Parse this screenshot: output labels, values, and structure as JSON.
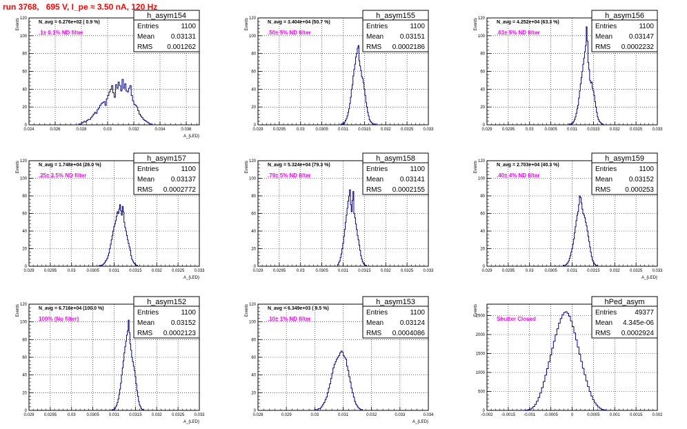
{
  "header": {
    "run_title": "run 3768,   695 V, I_pe ≈ 3.50 nA, 120 Hz"
  },
  "colors": {
    "title": "#ff0000",
    "histogram": "#000080",
    "annotation": "#ff00ff",
    "grid": "#000000"
  },
  "chart_data": [
    {
      "type": "histogram",
      "stats_title": "h_asym154",
      "stats": [
        [
          "Entries",
          "1100"
        ],
        [
          "Mean",
          "0.03131"
        ],
        [
          "RMS",
          "0.001262"
        ]
      ],
      "navg": "N_avg = 6.276e+02 ( 0.9 %)",
      "filter": ".1± 0.1% ND filter",
      "ylabel": "Events",
      "xlabel": "A_{LED}",
      "xlim": [
        0.024,
        0.037
      ],
      "ylim": [
        0,
        120
      ],
      "xticks": [
        0.024,
        0.026,
        0.028,
        0.03,
        0.032,
        0.034,
        0.036
      ],
      "xticklabels": [
        "0.024",
        "0.026",
        "0.028",
        "0.03",
        "0.032",
        "0.034",
        "0.036"
      ],
      "yticks": [
        0,
        20,
        40,
        60,
        80,
        100,
        120
      ],
      "yticklabels": [
        "0",
        "20",
        "40",
        "60",
        "80",
        "100",
        "120"
      ],
      "bins": {
        "start": 0.0278,
        "width": 0.0001,
        "counts": [
          1,
          1,
          2,
          3,
          4,
          3,
          5,
          6,
          6,
          8,
          10,
          12,
          14,
          13,
          17,
          19,
          22,
          24,
          25,
          26,
          22,
          29,
          33,
          37,
          40,
          44,
          36,
          31,
          45,
          41,
          48,
          44,
          38,
          51,
          41,
          46,
          38,
          37,
          41,
          44,
          33,
          27,
          23,
          22,
          20,
          16,
          12,
          10,
          8,
          6,
          5,
          4,
          3,
          2,
          1,
          1
        ]
      }
    },
    {
      "type": "histogram",
      "stats_title": "h_asym155",
      "stats": [
        [
          "Entries",
          "1100"
        ],
        [
          "Mean",
          "0.03151"
        ],
        [
          "RMS",
          "0.0002186"
        ]
      ],
      "navg": "N_avg = 3.404e+04 (50.7 %)",
      "filter": ".50± 5% ND filter",
      "ylabel": "Events",
      "xlabel": "",
      "xlim": [
        0.029,
        0.033
      ],
      "ylim": [
        0,
        120
      ],
      "xticks": [
        0.029,
        0.0295,
        0.03,
        0.0305,
        0.031,
        0.0315,
        0.032,
        0.0325,
        0.033
      ],
      "xticklabels": [
        "0.029",
        "0.0295",
        "0.03",
        "0.0305",
        "0.031",
        "0.0315",
        "0.032",
        "0.0325",
        "0.033"
      ],
      "yticks": [
        0,
        20,
        40,
        60,
        80,
        100,
        120
      ],
      "yticklabels": [
        "0",
        "20",
        "40",
        "60",
        "80",
        "100",
        "120"
      ],
      "bins": {
        "start": 0.03095,
        "width": 2e-05,
        "counts": [
          1,
          0,
          2,
          1,
          3,
          5,
          7,
          10,
          14,
          18,
          24,
          31,
          40,
          45,
          55,
          62,
          68,
          76,
          80,
          86,
          89,
          72,
          66,
          61,
          54,
          52,
          47,
          40,
          33,
          25,
          20,
          14,
          10,
          6,
          4,
          3,
          2,
          1,
          1,
          0,
          1
        ]
      }
    },
    {
      "type": "histogram",
      "stats_title": "h_asym156",
      "stats": [
        [
          "Entries",
          "1100"
        ],
        [
          "Mean",
          "0.03147"
        ],
        [
          "RMS",
          "0.0002232"
        ]
      ],
      "navg": "N_avg = 4.252e+04 (63.3 %)",
      "filter": ".63± 5% ND filter",
      "ylabel": "Events",
      "xlabel": "",
      "xlim": [
        0.029,
        0.033
      ],
      "ylim": [
        0,
        120
      ],
      "xticks": [
        0.029,
        0.0295,
        0.03,
        0.0305,
        0.031,
        0.0315,
        0.032,
        0.0325,
        0.033
      ],
      "xticklabels": [
        "0.029",
        "0.0295",
        "0.03",
        "0.0305",
        "0.031",
        "0.0315",
        "0.032",
        "0.0325",
        "0.033"
      ],
      "yticks": [
        0,
        20,
        40,
        60,
        80,
        100,
        120
      ],
      "yticklabels": [
        "0",
        "20",
        "40",
        "60",
        "80",
        "100",
        "120"
      ],
      "bins": {
        "start": 0.03093,
        "width": 2e-05,
        "counts": [
          1,
          0,
          1,
          2,
          2,
          4,
          6,
          9,
          13,
          18,
          22,
          30,
          38,
          46,
          53,
          60,
          68,
          75,
          82,
          89,
          110,
          94,
          70,
          62,
          50,
          47,
          48,
          41,
          38,
          33,
          26,
          20,
          14,
          9,
          6,
          4,
          3,
          2,
          1,
          1
        ]
      }
    },
    {
      "type": "histogram",
      "stats_title": "h_asym157",
      "stats": [
        [
          "Entries",
          "1100"
        ],
        [
          "Mean",
          "0.03137"
        ],
        [
          "RMS",
          "0.0002772"
        ]
      ],
      "navg": "N_avg = 1.748e+04 (26.0 %)",
      "filter": ".25± 2.5% ND filter",
      "ylabel": "Events",
      "xlabel": "A_{LED}",
      "xlim": [
        0.029,
        0.033
      ],
      "ylim": [
        0,
        120
      ],
      "xticks": [
        0.029,
        0.0295,
        0.03,
        0.0305,
        0.031,
        0.0315,
        0.032,
        0.0325,
        0.033
      ],
      "xticklabels": [
        "0.029",
        "0.0295",
        "0.03",
        "0.0305",
        "0.031",
        "0.0315",
        "0.032",
        "0.0325",
        "0.033"
      ],
      "yticks": [
        0,
        20,
        40,
        60,
        80,
        100,
        120
      ],
      "yticklabels": [
        "0",
        "20",
        "40",
        "60",
        "80",
        "100",
        "120"
      ],
      "bins": {
        "start": 0.03065,
        "width": 2e-05,
        "counts": [
          1,
          0,
          1,
          1,
          2,
          3,
          4,
          6,
          7,
          9,
          12,
          15,
          20,
          25,
          30,
          35,
          40,
          45,
          48,
          52,
          57,
          62,
          60,
          65,
          70,
          63,
          58,
          68,
          62,
          50,
          44,
          40,
          35,
          30,
          26,
          22,
          18,
          12,
          8,
          6,
          4,
          3,
          2,
          1,
          1
        ]
      }
    },
    {
      "type": "histogram",
      "stats_title": "h_asym158",
      "stats": [
        [
          "Entries",
          "1100"
        ],
        [
          "Mean",
          "0.03141"
        ],
        [
          "RMS",
          "0.0002155"
        ]
      ],
      "navg": "N_avg = 5.324e+04 (79.3 %)",
      "filter": ".79± 5% ND filter",
      "ylabel": "Events",
      "xlabel": "",
      "xlim": [
        0.029,
        0.033
      ],
      "ylim": [
        0,
        120
      ],
      "xticks": [
        0.029,
        0.0295,
        0.03,
        0.0305,
        0.031,
        0.0315,
        0.032,
        0.0325,
        0.033
      ],
      "xticklabels": [
        "0.029",
        "0.0295",
        "0.03",
        "0.0305",
        "0.031",
        "0.0315",
        "0.032",
        "0.0325",
        "0.033"
      ],
      "yticks": [
        0,
        20,
        40,
        60,
        80,
        100,
        120
      ],
      "yticklabels": [
        "0",
        "20",
        "40",
        "60",
        "80",
        "100",
        "120"
      ],
      "bins": {
        "start": 0.03087,
        "width": 2e-05,
        "counts": [
          2,
          4,
          6,
          10,
          14,
          20,
          26,
          34,
          42,
          50,
          58,
          66,
          74,
          80,
          87,
          70,
          62,
          75,
          85,
          60,
          55,
          48,
          42,
          35,
          30,
          24,
          18,
          12,
          8,
          5,
          3,
          2,
          1,
          1
        ]
      }
    },
    {
      "type": "histogram",
      "stats_title": "h_asym159",
      "stats": [
        [
          "Entries",
          "1100"
        ],
        [
          "Mean",
          "0.03152"
        ],
        [
          "RMS",
          "0.000253"
        ]
      ],
      "navg": "N_avg = 2.703e+04 (40.3 %)",
      "filter": ".40± 4% ND filter",
      "ylabel": "Events",
      "xlabel": "A_{LED}",
      "xlim": [
        0.029,
        0.033
      ],
      "ylim": [
        0,
        120
      ],
      "xticks": [
        0.029,
        0.0295,
        0.03,
        0.0305,
        0.031,
        0.0315,
        0.032,
        0.0325,
        0.033
      ],
      "xticklabels": [
        "0.029",
        "0.0295",
        "0.03",
        "0.0305",
        "0.031",
        "0.0315",
        "0.032",
        "0.0325",
        "0.033"
      ],
      "yticks": [
        0,
        20,
        40,
        60,
        80,
        100,
        120
      ],
      "yticklabels": [
        "0",
        "20",
        "40",
        "60",
        "80",
        "100",
        "120"
      ],
      "bins": {
        "start": 0.03079,
        "width": 2e-05,
        "counts": [
          1,
          0,
          1,
          2,
          3,
          4,
          6,
          9,
          12,
          16,
          20,
          25,
          31,
          38,
          45,
          52,
          58,
          62,
          70,
          80,
          78,
          72,
          65,
          60,
          58,
          55,
          50,
          46,
          40,
          34,
          28,
          22,
          16,
          11,
          7,
          5,
          3,
          2,
          1,
          1
        ]
      }
    },
    {
      "type": "histogram",
      "stats_title": "h_asym152",
      "stats": [
        [
          "Entries",
          "1100"
        ],
        [
          "Mean",
          "0.03152"
        ],
        [
          "RMS",
          "0.0002123"
        ]
      ],
      "navg": "N_avg = 6.716e+04 (100.0 %)",
      "filter": "100% (No filter)",
      "ylabel": "Events",
      "xlabel": "A_{LED}",
      "xlim": [
        0.029,
        0.033
      ],
      "ylim": [
        0,
        120
      ],
      "xticks": [
        0.029,
        0.0295,
        0.03,
        0.0305,
        0.031,
        0.0315,
        0.032,
        0.0325,
        0.033
      ],
      "xticklabels": [
        "0.029",
        "0.0295",
        "0.03",
        "0.0305",
        "0.031",
        "0.0315",
        "0.032",
        "0.0325",
        "0.033"
      ],
      "yticks": [
        0,
        20,
        40,
        60,
        80,
        100,
        120
      ],
      "yticklabels": [
        "0",
        "20",
        "40",
        "60",
        "80",
        "100",
        "120"
      ],
      "bins": {
        "start": 0.03095,
        "width": 2e-05,
        "counts": [
          1,
          0,
          1,
          2,
          4,
          6,
          9,
          13,
          18,
          24,
          31,
          40,
          48,
          56,
          65,
          72,
          78,
          85,
          90,
          102,
          88,
          75,
          68,
          60,
          55,
          50,
          45,
          38,
          30,
          22,
          16,
          10,
          6,
          4,
          2,
          1,
          1
        ]
      }
    },
    {
      "type": "histogram",
      "stats_title": "h_asym153",
      "stats": [
        [
          "Entries",
          "1100"
        ],
        [
          "Mean",
          "0.03124"
        ],
        [
          "RMS",
          "0.0004086"
        ]
      ],
      "navg": "N_avg = 6.349e+03 ( 9.5 %)",
      "filter": ".10± 1% ND filter",
      "ylabel": "Events",
      "xlabel": "A_{LED}",
      "xlim": [
        0.028,
        0.034
      ],
      "ylim": [
        0,
        120
      ],
      "xticks": [
        0.028,
        0.029,
        0.03,
        0.031,
        0.032,
        0.033,
        0.034
      ],
      "xticklabels": [
        "0.028",
        "0.029",
        "0.03",
        "0.031",
        "0.032",
        "0.033",
        "0.034"
      ],
      "yticks": [
        0,
        20,
        40,
        60,
        80,
        100,
        120
      ],
      "yticklabels": [
        "0",
        "20",
        "40",
        "60",
        "80",
        "100",
        "120"
      ],
      "bins": {
        "start": 0.03,
        "width": 4e-05,
        "counts": [
          1,
          0,
          1,
          2,
          2,
          3,
          5,
          7,
          9,
          12,
          15,
          20,
          25,
          30,
          36,
          42,
          48,
          52,
          55,
          58,
          60,
          62,
          65,
          67,
          66,
          62,
          60,
          58,
          50,
          45,
          38,
          32,
          25,
          20,
          15,
          10,
          7,
          5,
          3,
          2,
          1,
          1
        ]
      }
    },
    {
      "type": "histogram",
      "stats_title": "hPed_asym",
      "stats": [
        [
          "Entries",
          "49377"
        ],
        [
          "Mean",
          "4.345e-06"
        ],
        [
          "RMS",
          "0.0002924"
        ]
      ],
      "navg": "",
      "filter": "Shutter Closed",
      "ylabel": "Events",
      "xlabel": "",
      "xlim": [
        -0.002,
        0.002
      ],
      "ylim": [
        0,
        2800
      ],
      "xticks": [
        -0.002,
        -0.0015,
        -0.001,
        -0.0005,
        0,
        0.0005,
        0.001,
        0.0015,
        0.002
      ],
      "xticklabels": [
        "-0.002",
        "-0.0015",
        "-0.001",
        "-0.0005",
        "0",
        "0.0005",
        "0.001",
        "0.0015",
        "0.002"
      ],
      "yticks": [
        0,
        500,
        1000,
        1500,
        2000,
        2500
      ],
      "yticklabels": [
        "0",
        "500",
        "1000",
        "1500",
        "2000",
        "2500"
      ],
      "bins": {
        "start": -0.00116,
        "width": 4e-05,
        "counts": [
          2,
          5,
          10,
          20,
          35,
          60,
          100,
          160,
          240,
          340,
          460,
          600,
          760,
          930,
          1100,
          1280,
          1460,
          1640,
          1820,
          1990,
          2150,
          2300,
          2420,
          2520,
          2580,
          2600,
          2560,
          2480,
          2360,
          2210,
          2040,
          1860,
          1670,
          1480,
          1290,
          1110,
          940,
          780,
          630,
          500,
          380,
          280,
          200,
          140,
          90,
          55,
          30,
          15,
          8,
          3
        ]
      }
    }
  ]
}
